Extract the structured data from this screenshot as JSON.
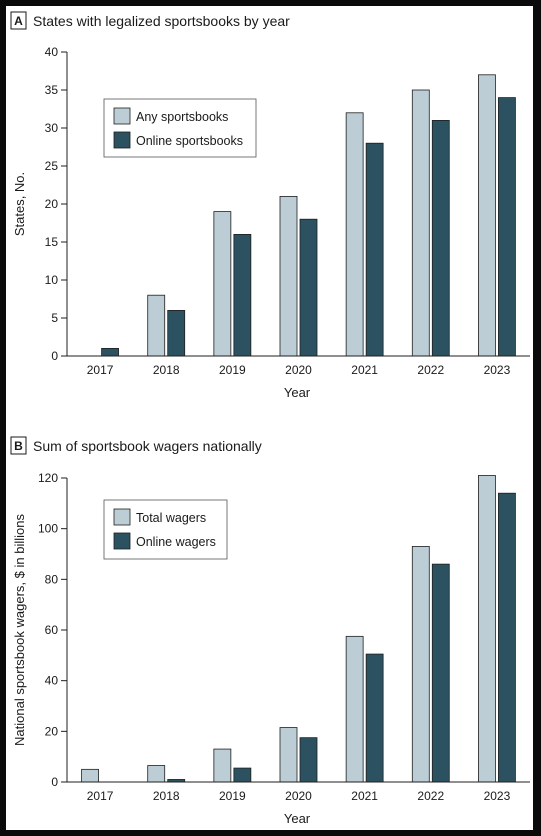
{
  "colors": {
    "light": "#bccdd6",
    "dark": "#2c5160",
    "stroke": "#1f1f1f"
  },
  "chart_data": [
    {
      "type": "bar",
      "panel": "A",
      "title": "States with legalized sportsbooks by year",
      "xlabel": "Year",
      "ylabel": "States, No.",
      "ylim": [
        0,
        40
      ],
      "yticks": [
        0,
        5,
        10,
        15,
        20,
        25,
        30,
        35,
        40
      ],
      "categories": [
        "2017",
        "2018",
        "2019",
        "2020",
        "2021",
        "2022",
        "2023"
      ],
      "series": [
        {
          "name": "Any sportsbooks",
          "color": "#bccdd6",
          "values": [
            0,
            8,
            19,
            21,
            32,
            35,
            37
          ]
        },
        {
          "name": "Online sportsbooks",
          "color": "#2c5160",
          "values": [
            1,
            6,
            16,
            18,
            28,
            31,
            34
          ]
        }
      ],
      "legend": "top-left",
      "grid": false
    },
    {
      "type": "bar",
      "panel": "B",
      "title": "Sum of sportsbook wagers nationally",
      "xlabel": "Year",
      "ylabel": "National sportsbook wagers, $ in billions",
      "ylim": [
        0,
        120
      ],
      "yticks": [
        0,
        20,
        40,
        60,
        80,
        100,
        120
      ],
      "categories": [
        "2017",
        "2018",
        "2019",
        "2020",
        "2021",
        "2022",
        "2023"
      ],
      "series": [
        {
          "name": "Total wagers",
          "color": "#bccdd6",
          "values": [
            5,
            6.5,
            13,
            21.5,
            57.5,
            93,
            121
          ]
        },
        {
          "name": "Online wagers",
          "color": "#2c5160",
          "values": [
            0,
            1,
            5.5,
            17.5,
            50.5,
            86,
            114
          ]
        }
      ],
      "legend": "top-left",
      "grid": false
    }
  ]
}
